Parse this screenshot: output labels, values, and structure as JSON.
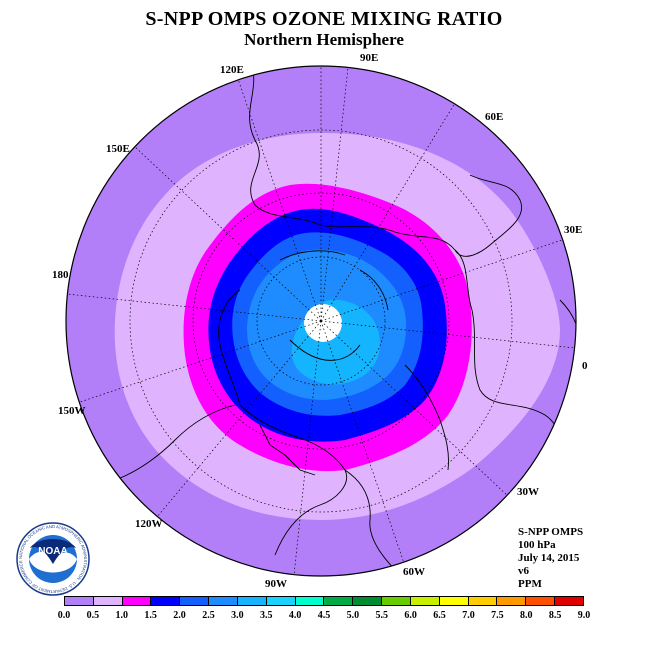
{
  "title": "S-NPP OMPS OZONE MIXING RATIO",
  "subtitle": "Northern Hemisphere",
  "longitudes": [
    "90E",
    "60E",
    "30E",
    "0",
    "30W",
    "60W",
    "90W",
    "120W",
    "150W",
    "180",
    "150E",
    "120E"
  ],
  "info": {
    "instrument": "S-NPP OMPS",
    "level": "100 hPa",
    "date": "July 14, 2015",
    "version": "v6",
    "units": "PPM"
  },
  "logo_text": "NOAA",
  "logo_ring_text": "NATIONAL OCEANIC AND ATMOSPHERIC ADMINISTRATION · U.S. DEPARTMENT OF COMMERCE",
  "colorbar": {
    "ticks": [
      "0.0",
      "0.5",
      "1.0",
      "1.5",
      "2.0",
      "2.5",
      "3.0",
      "3.5",
      "4.0",
      "4.5",
      "5.0",
      "5.5",
      "6.0",
      "6.5",
      "7.0",
      "7.5",
      "8.0",
      "8.5",
      "9.0"
    ],
    "colors": [
      "#b27ff8",
      "#e0b3ff",
      "#ff00ff",
      "#0000ff",
      "#1460ff",
      "#1e8cff",
      "#14b4ff",
      "#19d3ff",
      "#00ffcc",
      "#00aa44",
      "#008c32",
      "#66cc00",
      "#c8ee00",
      "#ffff00",
      "#ffcc00",
      "#ff9900",
      "#ff5000",
      "#e00000",
      "#8b5a2b"
    ]
  },
  "map_fill": {
    "outer": "#b27ff8",
    "band_1": "#e0b3ff",
    "band_2": "#ff00ff",
    "band_3": "#0000ff",
    "band_4": "#1460ff",
    "band_5": "#1e8cff",
    "band_6": "#14b4ff",
    "pole": "#ffffff"
  }
}
